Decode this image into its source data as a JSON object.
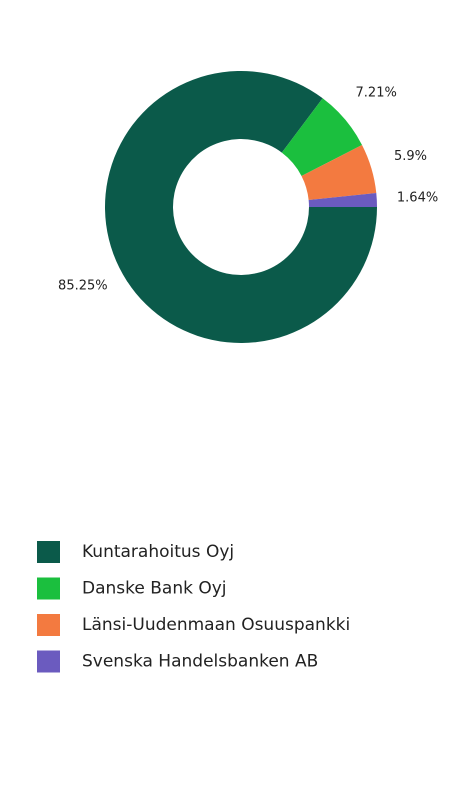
{
  "chart_data": {
    "type": "pie",
    "categories": [
      "Kuntarahoitus Oyj",
      "Danske Bank Oyj",
      "Länsi-Uudenmaan Osuuspankki",
      "Svenska Handelsbanken AB"
    ],
    "values": [
      85.25,
      7.21,
      5.9,
      1.64
    ],
    "value_labels": [
      "85.25%",
      "7.21%",
      "5.9%",
      "1.64%"
    ],
    "colors": [
      "#0b5a4a",
      "#1bbf3e",
      "#f37a40",
      "#6b5bbf"
    ],
    "donut": true,
    "legend": "bottom-left"
  }
}
